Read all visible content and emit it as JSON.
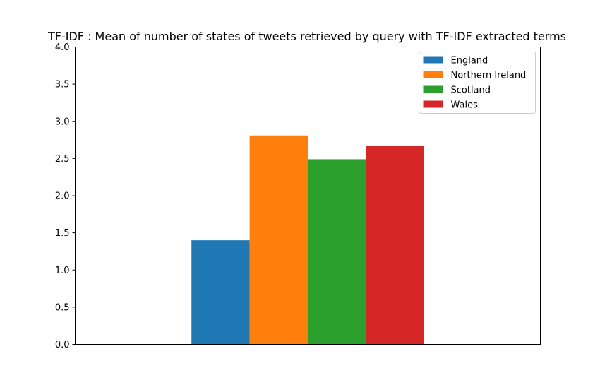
{
  "chart_data": {
    "type": "bar",
    "title": "TF-IDF : Mean of number of states of tweets retrieved by query with TF-IDF extracted terms",
    "xlabel": "",
    "ylabel": "",
    "ylim": [
      0,
      4.0
    ],
    "yticks": [
      "0.0",
      "0.5",
      "1.0",
      "1.5",
      "2.0",
      "2.5",
      "3.0",
      "3.5",
      "4.0"
    ],
    "grid": false,
    "legend_position": "top-right",
    "series": [
      {
        "name": "England",
        "value": 1.4,
        "color": "#1f77b4"
      },
      {
        "name": "Northern Ireland",
        "value": 2.81,
        "color": "#ff7f0e"
      },
      {
        "name": "Scotland",
        "value": 2.49,
        "color": "#2ca02c"
      },
      {
        "name": "Wales",
        "value": 2.67,
        "color": "#d62728"
      }
    ]
  }
}
